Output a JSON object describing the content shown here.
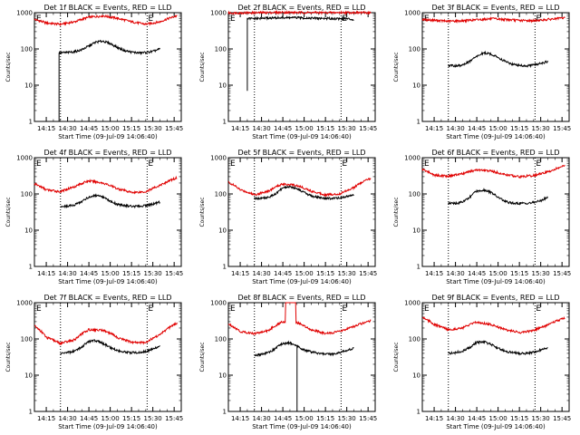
{
  "colors": {
    "events": "#000000",
    "lld": "#e00000",
    "axes": "#000000"
  },
  "chart_data": [
    {
      "type": "line",
      "title": "Det 1f BLACK = Events, RED = LLD",
      "xlabel": "Start Time (09-Jul-09 14:06:40)",
      "ylabel": "Counts/sec",
      "xticks": [
        "14:15",
        "14:30",
        "14:45",
        "15:00",
        "15:15",
        "15:30",
        "15:45"
      ],
      "yticks": [
        "1",
        "10",
        "100",
        "1000"
      ],
      "yscale": "log",
      "ylim": [
        1,
        1000
      ],
      "xlim": [
        "14:06:40",
        "15:50:00"
      ],
      "dotted_lines_at": [
        "14:25",
        "15:26"
      ],
      "corner_labels": [
        "E",
        "E"
      ],
      "series": [
        {
          "name": "Events",
          "color": "#000000",
          "start": "14:24",
          "end": "15:35",
          "drop_to": 1,
          "x": [
            "14:24",
            "14:30",
            "14:35",
            "14:40",
            "14:45",
            "14:50",
            "14:55",
            "15:00",
            "15:05",
            "15:10",
            "15:15",
            "15:20",
            "15:25",
            "15:30",
            "15:35"
          ],
          "y": [
            78,
            80,
            84,
            95,
            120,
            155,
            165,
            140,
            110,
            90,
            82,
            78,
            80,
            85,
            100
          ]
        },
        {
          "name": "LLD",
          "color": "#e00000",
          "start": "14:06:40",
          "end": "15:47",
          "x": [
            "14:06:40",
            "14:15",
            "14:25",
            "14:35",
            "14:45",
            "14:55",
            "15:05",
            "15:15",
            "15:25",
            "15:35",
            "15:47"
          ],
          "y": [
            650,
            520,
            480,
            560,
            750,
            820,
            700,
            560,
            480,
            560,
            820
          ]
        }
      ]
    },
    {
      "type": "line",
      "title": "Det 2f BLACK = Events, RED = LLD",
      "xlabel": "Start Time (09-Jul-09 14:06:40)",
      "ylabel": "Counts/sec",
      "xticks": [
        "14:15",
        "14:30",
        "14:45",
        "15:00",
        "15:15",
        "15:30",
        "15:45"
      ],
      "yticks": [
        "1",
        "10",
        "100",
        "1000"
      ],
      "yscale": "log",
      "ylim": [
        1,
        1000
      ],
      "xlim": [
        "14:06:40",
        "15:50:00"
      ],
      "dotted_lines_at": [
        "14:25",
        "15:26"
      ],
      "corner_labels": [
        "E",
        "E"
      ],
      "series": [
        {
          "name": "Events",
          "color": "#000000",
          "start": "14:20",
          "end": "15:35",
          "drop_to": 7,
          "x": [
            "14:20",
            "14:30",
            "14:40",
            "14:50",
            "15:00",
            "15:10",
            "15:20",
            "15:30",
            "15:35"
          ],
          "y": [
            680,
            700,
            720,
            730,
            720,
            700,
            690,
            680,
            650
          ]
        },
        {
          "name": "LLD",
          "color": "#e00000",
          "start": "14:06:40",
          "end": "15:47",
          "x": [
            "14:06:40",
            "14:20",
            "14:30",
            "14:45",
            "15:00",
            "15:15",
            "15:30",
            "15:47"
          ],
          "y": [
            980,
            990,
            1000,
            1020,
            1010,
            1000,
            1010,
            1000
          ]
        }
      ]
    },
    {
      "type": "line",
      "title": "Det 3f BLACK = Events, RED = LLD",
      "xlabel": "Start Time (09-Jul-09 14:06:40)",
      "ylabel": "Counts/sec",
      "xticks": [
        "14:15",
        "14:30",
        "14:45",
        "15:00",
        "15:15",
        "15:30",
        "15:45"
      ],
      "yticks": [
        "1",
        "10",
        "100",
        "1000"
      ],
      "yscale": "log",
      "ylim": [
        1,
        1000
      ],
      "xlim": [
        "14:06:40",
        "15:50:00"
      ],
      "dotted_lines_at": [
        "14:25",
        "15:26"
      ],
      "corner_labels": [
        "E",
        "E"
      ],
      "series": [
        {
          "name": "Events",
          "color": "#000000",
          "start": "14:25",
          "end": "15:35",
          "x": [
            "14:25",
            "14:30",
            "14:35",
            "14:40",
            "14:45",
            "14:50",
            "14:55",
            "15:00",
            "15:05",
            "15:10",
            "15:15",
            "15:20",
            "15:25",
            "15:30",
            "15:35"
          ],
          "y": [
            35,
            34,
            36,
            45,
            62,
            78,
            72,
            58,
            45,
            38,
            35,
            34,
            36,
            40,
            45
          ]
        },
        {
          "name": "LLD",
          "color": "#e00000",
          "start": "14:06:40",
          "end": "15:47",
          "x": [
            "14:06:40",
            "14:15",
            "14:25",
            "14:35",
            "14:45",
            "14:55",
            "15:05",
            "15:15",
            "15:25",
            "15:35",
            "15:47"
          ],
          "y": [
            650,
            620,
            580,
            600,
            640,
            680,
            650,
            610,
            600,
            650,
            720
          ]
        }
      ]
    },
    {
      "type": "line",
      "title": "Det 4f BLACK = Events, RED = LLD",
      "xlabel": "Start Time (09-Jul-09 14:06:40)",
      "ylabel": "Counts/sec",
      "xticks": [
        "14:15",
        "14:30",
        "14:45",
        "15:00",
        "15:15",
        "15:30",
        "15:45"
      ],
      "yticks": [
        "1",
        "10",
        "100",
        "1000"
      ],
      "yscale": "log",
      "ylim": [
        1,
        1000
      ],
      "xlim": [
        "14:06:40",
        "15:50:00"
      ],
      "dotted_lines_at": [
        "14:25",
        "15:26"
      ],
      "corner_labels": [
        "E",
        "E"
      ],
      "series": [
        {
          "name": "Events",
          "color": "#000000",
          "start": "14:25",
          "end": "15:35",
          "x": [
            "14:25",
            "14:30",
            "14:35",
            "14:40",
            "14:45",
            "14:50",
            "14:55",
            "15:00",
            "15:05",
            "15:10",
            "15:15",
            "15:20",
            "15:25",
            "15:30",
            "15:35"
          ],
          "y": [
            45,
            46,
            50,
            62,
            82,
            90,
            80,
            62,
            52,
            48,
            46,
            45,
            48,
            52,
            60
          ]
        },
        {
          "name": "LLD",
          "color": "#e00000",
          "start": "14:06:40",
          "end": "15:47",
          "x": [
            "14:06:40",
            "14:15",
            "14:25",
            "14:35",
            "14:45",
            "14:55",
            "15:05",
            "15:15",
            "15:25",
            "15:35",
            "15:47"
          ],
          "y": [
            190,
            130,
            115,
            160,
            230,
            200,
            140,
            110,
            115,
            170,
            280
          ]
        }
      ]
    },
    {
      "type": "line",
      "title": "Det 5f BLACK = Events, RED = LLD",
      "xlabel": "Start Time (09-Jul-09 14:06:40)",
      "ylabel": "Counts/sec",
      "xticks": [
        "14:15",
        "14:30",
        "14:45",
        "15:00",
        "15:15",
        "15:30",
        "15:45"
      ],
      "yticks": [
        "1",
        "10",
        "100",
        "1000"
      ],
      "yscale": "log",
      "ylim": [
        1,
        1000
      ],
      "xlim": [
        "14:06:40",
        "15:50:00"
      ],
      "dotted_lines_at": [
        "14:25",
        "15:26"
      ],
      "corner_labels": [
        "E",
        "E"
      ],
      "series": [
        {
          "name": "Events",
          "color": "#000000",
          "start": "14:25",
          "end": "15:35",
          "x": [
            "14:25",
            "14:30",
            "14:35",
            "14:40",
            "14:45",
            "14:50",
            "14:55",
            "15:00",
            "15:05",
            "15:10",
            "15:15",
            "15:20",
            "15:25",
            "15:30",
            "15:35"
          ],
          "y": [
            75,
            76,
            80,
            100,
            145,
            160,
            140,
            110,
            88,
            80,
            76,
            75,
            78,
            85,
            95
          ]
        },
        {
          "name": "LLD",
          "color": "#e00000",
          "start": "14:06:40",
          "end": "15:47",
          "x": [
            "14:06:40",
            "14:15",
            "14:25",
            "14:35",
            "14:45",
            "14:55",
            "15:05",
            "15:15",
            "15:25",
            "15:35",
            "15:47"
          ],
          "y": [
            210,
            130,
            95,
            120,
            190,
            170,
            120,
            95,
            100,
            150,
            270
          ]
        }
      ]
    },
    {
      "type": "line",
      "title": "Det 6f BLACK = Events, RED = LLD",
      "xlabel": "Start Time (09-Jul-09 14:06:40)",
      "ylabel": "Counts/sec",
      "xticks": [
        "14:15",
        "14:30",
        "14:45",
        "15:00",
        "15:15",
        "15:30",
        "15:45"
      ],
      "yticks": [
        "1",
        "10",
        "100",
        "1000"
      ],
      "yscale": "log",
      "ylim": [
        1,
        1000
      ],
      "xlim": [
        "14:06:40",
        "15:50:00"
      ],
      "dotted_lines_at": [
        "14:25",
        "15:26"
      ],
      "corner_labels": [
        "E",
        "E"
      ],
      "series": [
        {
          "name": "Events",
          "color": "#000000",
          "start": "14:25",
          "end": "15:35",
          "x": [
            "14:25",
            "14:30",
            "14:35",
            "14:40",
            "14:45",
            "14:50",
            "14:55",
            "15:00",
            "15:05",
            "15:10",
            "15:15",
            "15:20",
            "15:25",
            "15:30",
            "15:35"
          ],
          "y": [
            55,
            55,
            60,
            80,
            120,
            130,
            110,
            80,
            62,
            56,
            55,
            55,
            58,
            65,
            80
          ]
        },
        {
          "name": "LLD",
          "color": "#e00000",
          "start": "14:06:40",
          "end": "15:47",
          "x": [
            "14:06:40",
            "14:15",
            "14:25",
            "14:35",
            "14:45",
            "14:55",
            "15:05",
            "15:15",
            "15:25",
            "15:35",
            "15:47"
          ],
          "y": [
            480,
            330,
            310,
            360,
            460,
            430,
            340,
            300,
            320,
            400,
            600
          ]
        }
      ]
    },
    {
      "type": "line",
      "title": "Det 7f BLACK = Events, RED = LLD",
      "xlabel": "Start Time (09-Jul-09 14:06:40)",
      "ylabel": "Counts/sec",
      "xticks": [
        "14:15",
        "14:30",
        "14:45",
        "15:00",
        "15:15",
        "15:30",
        "15:45"
      ],
      "yticks": [
        "1",
        "10",
        "100",
        "1000"
      ],
      "yscale": "log",
      "ylim": [
        1,
        1000
      ],
      "xlim": [
        "14:06:40",
        "15:50:00"
      ],
      "dotted_lines_at": [
        "14:25",
        "15:26"
      ],
      "corner_labels": [
        "E",
        "E"
      ],
      "series": [
        {
          "name": "Events",
          "color": "#000000",
          "start": "14:25",
          "end": "15:35",
          "x": [
            "14:25",
            "14:30",
            "14:35",
            "14:40",
            "14:45",
            "14:50",
            "14:55",
            "15:00",
            "15:05",
            "15:10",
            "15:15",
            "15:20",
            "15:25",
            "15:30",
            "15:35"
          ],
          "y": [
            40,
            42,
            46,
            60,
            85,
            90,
            75,
            58,
            48,
            44,
            42,
            42,
            45,
            52,
            62
          ]
        },
        {
          "name": "LLD",
          "color": "#e00000",
          "start": "14:06:40",
          "end": "15:47",
          "x": [
            "14:06:40",
            "14:15",
            "14:25",
            "14:35",
            "14:45",
            "14:55",
            "15:05",
            "15:15",
            "15:25",
            "15:35",
            "15:47"
          ],
          "y": [
            230,
            110,
            75,
            95,
            180,
            175,
            110,
            80,
            80,
            130,
            270
          ]
        }
      ]
    },
    {
      "type": "line",
      "title": "Det 8f BLACK = Events, RED = LLD",
      "xlabel": "Start Time (09-Jul-09 14:06:40)",
      "ylabel": "Counts/sec",
      "xticks": [
        "14:15",
        "14:30",
        "14:45",
        "15:00",
        "15:15",
        "15:30",
        "15:45"
      ],
      "yticks": [
        "1",
        "10",
        "100",
        "1000"
      ],
      "yscale": "log",
      "ylim": [
        1,
        1000
      ],
      "xlim": [
        "14:06:40",
        "15:50:00"
      ],
      "dotted_lines_at": [
        "14:25",
        "15:26"
      ],
      "corner_labels": [
        "E",
        "E"
      ],
      "spike_lld": {
        "from": "14:47",
        "to": "14:54",
        "level": 1000
      },
      "dropout_events": {
        "at": "14:55",
        "min": 1
      },
      "series": [
        {
          "name": "Events",
          "color": "#000000",
          "start": "14:25",
          "end": "15:35",
          "x": [
            "14:25",
            "14:30",
            "14:35",
            "14:40",
            "14:45",
            "14:50",
            "14:55",
            "15:00",
            "15:05",
            "15:10",
            "15:15",
            "15:20",
            "15:25",
            "15:30",
            "15:35"
          ],
          "y": [
            36,
            38,
            42,
            55,
            75,
            78,
            62,
            50,
            44,
            40,
            38,
            38,
            42,
            48,
            55
          ]
        },
        {
          "name": "LLD",
          "color": "#e00000",
          "start": "14:06:40",
          "end": "15:47",
          "x": [
            "14:06:40",
            "14:15",
            "14:25",
            "14:35",
            "14:45",
            "14:55",
            "15:05",
            "15:15",
            "15:25",
            "15:35",
            "15:47"
          ],
          "y": [
            260,
            160,
            140,
            170,
            300,
            280,
            180,
            140,
            160,
            220,
            320
          ]
        }
      ]
    },
    {
      "type": "line",
      "title": "Det 9f BLACK = Events, RED = LLD",
      "xlabel": "Start Time (09-Jul-09 14:06:40)",
      "ylabel": "Counts/sec",
      "xticks": [
        "14:15",
        "14:30",
        "14:45",
        "15:00",
        "15:15",
        "15:30",
        "15:45"
      ],
      "yticks": [
        "1",
        "10",
        "100",
        "1000"
      ],
      "yscale": "log",
      "ylim": [
        1,
        1000
      ],
      "xlim": [
        "14:06:40",
        "15:50:00"
      ],
      "dotted_lines_at": [
        "14:25",
        "15:26"
      ],
      "corner_labels": [
        "E",
        "E"
      ],
      "series": [
        {
          "name": "Events",
          "color": "#000000",
          "start": "14:25",
          "end": "15:35",
          "x": [
            "14:25",
            "14:30",
            "14:35",
            "14:40",
            "14:45",
            "14:50",
            "14:55",
            "15:00",
            "15:05",
            "15:10",
            "15:15",
            "15:20",
            "15:25",
            "15:30",
            "15:35"
          ],
          "y": [
            40,
            42,
            46,
            58,
            80,
            85,
            70,
            55,
            46,
            42,
            40,
            40,
            43,
            50,
            58
          ]
        },
        {
          "name": "LLD",
          "color": "#e00000",
          "start": "14:06:40",
          "end": "15:47",
          "x": [
            "14:06:40",
            "14:15",
            "14:25",
            "14:35",
            "14:45",
            "14:55",
            "15:05",
            "15:15",
            "15:25",
            "15:35",
            "15:47"
          ],
          "y": [
            400,
            250,
            180,
            200,
            290,
            250,
            180,
            150,
            170,
            240,
            380
          ]
        }
      ]
    }
  ]
}
